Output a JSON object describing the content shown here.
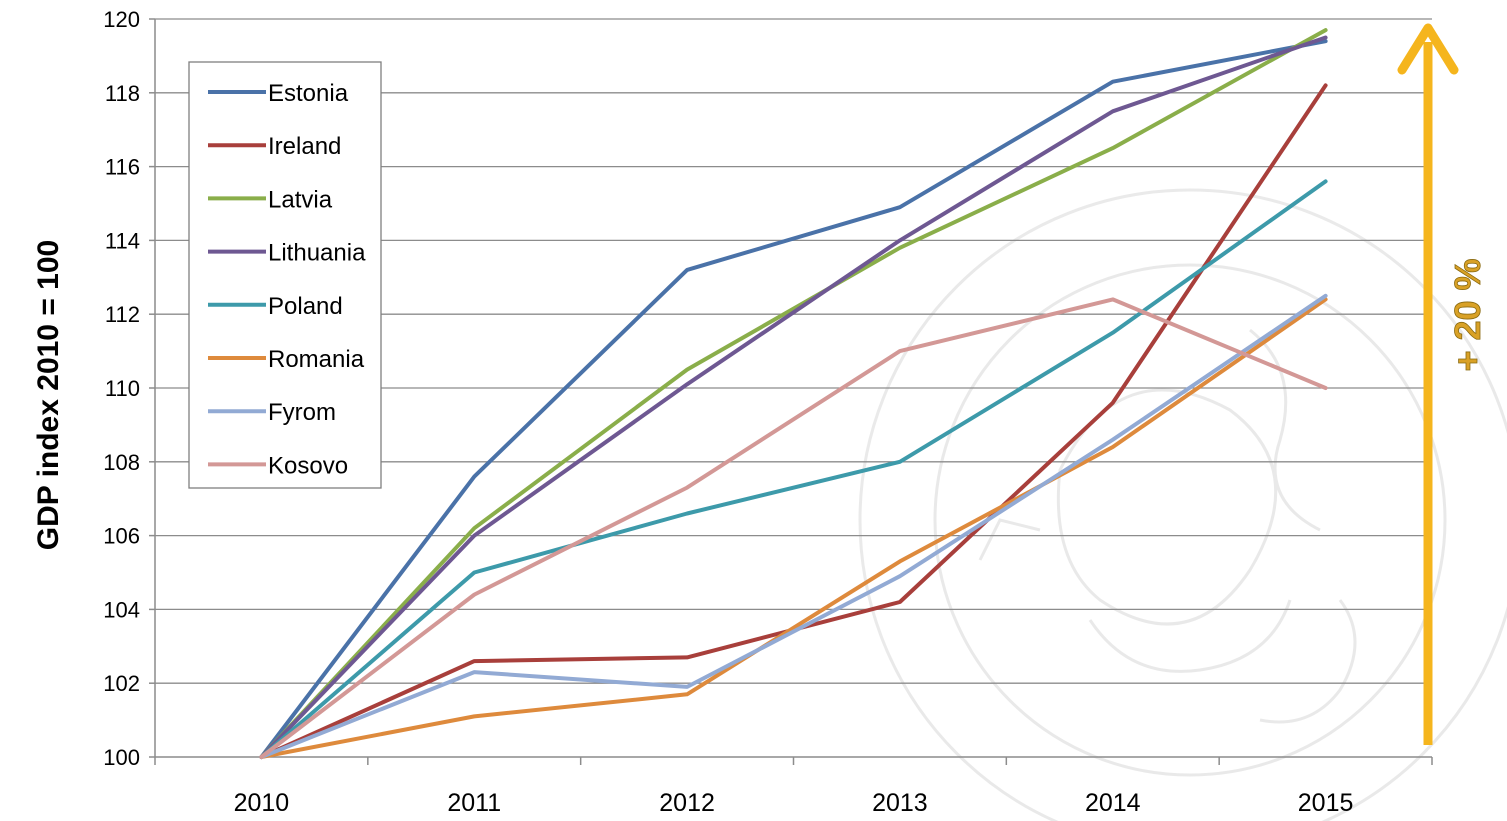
{
  "chart_data": {
    "type": "line",
    "title": "",
    "xlabel": "",
    "ylabel": "GDP index 2010 = 100",
    "x": [
      "2010",
      "2011",
      "2012",
      "2013",
      "2014",
      "2015"
    ],
    "ylim": [
      100,
      120
    ],
    "yticks": [
      100,
      102,
      104,
      106,
      108,
      110,
      112,
      114,
      116,
      118,
      120
    ],
    "grid": true,
    "legend_position": "top-left",
    "series": [
      {
        "name": "Estonia",
        "color": "#4A72A8",
        "values": [
          100,
          107.6,
          113.2,
          114.9,
          118.3,
          119.4
        ]
      },
      {
        "name": "Ireland",
        "color": "#A83F3B",
        "values": [
          100,
          102.6,
          102.7,
          104.2,
          109.6,
          118.2
        ]
      },
      {
        "name": "Latvia",
        "color": "#8AAE4A",
        "values": [
          100,
          106.2,
          110.5,
          113.8,
          116.5,
          119.7
        ]
      },
      {
        "name": "Lithuania",
        "color": "#6E5892",
        "values": [
          100,
          106.0,
          110.1,
          114.0,
          117.5,
          119.5
        ]
      },
      {
        "name": "Poland",
        "color": "#3D9AAA",
        "values": [
          100,
          105.0,
          106.6,
          108.0,
          111.5,
          115.6
        ]
      },
      {
        "name": "Romania",
        "color": "#DE8A3C",
        "values": [
          100,
          101.1,
          101.7,
          105.3,
          108.4,
          112.4
        ]
      },
      {
        "name": "Fyrom",
        "color": "#92AAD4",
        "values": [
          100,
          102.3,
          101.9,
          104.9,
          108.6,
          112.5
        ]
      },
      {
        "name": "Kosovo",
        "color": "#D39896",
        "values": [
          100,
          104.4,
          107.3,
          111.0,
          112.4,
          110.0
        ]
      }
    ],
    "annotation": {
      "text": "+ 20 %",
      "color": "#F5B51D",
      "text_color": "#D9A126"
    }
  }
}
